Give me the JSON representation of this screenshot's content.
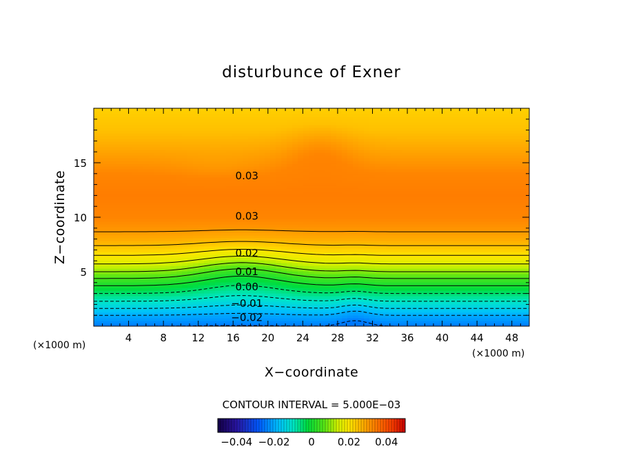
{
  "chart_data": {
    "type": "heatmap",
    "title": "disturbunce of Exner",
    "xlabel": "X−coordinate",
    "ylabel": "Z−coordinate",
    "x_unit": "(×1000 m)",
    "y_unit": "(×1000 m)",
    "xlim": [
      0,
      50
    ],
    "ylim": [
      0,
      20
    ],
    "x_ticks": [
      4,
      8,
      12,
      16,
      20,
      24,
      28,
      32,
      36,
      40,
      44,
      48
    ],
    "y_ticks": [
      5,
      10,
      15
    ],
    "contour_interval_text": "CONTOUR INTERVAL = 5.000E−03",
    "contour_interval": 0.005,
    "contour_labels": [
      {
        "text": "0.03",
        "x": 16,
        "z": 13.8
      },
      {
        "text": "0.03",
        "x": 16,
        "z": 10.1
      },
      {
        "text": "0.02",
        "x": 16,
        "z": 6.7
      },
      {
        "text": "0.01",
        "x": 16,
        "z": 5.0
      },
      {
        "text": "0.00",
        "x": 16,
        "z": 3.6
      },
      {
        "text": "−0.01",
        "x": 16,
        "z": 2.1
      },
      {
        "text": "−0.02",
        "x": 16,
        "z": 0.8
      }
    ],
    "colorbar": {
      "min": -0.05,
      "max": 0.05,
      "tick_values": [
        -0.04,
        -0.02,
        0,
        0.02,
        0.04
      ],
      "tick_labels": [
        "−0.04",
        "−0.02",
        "0",
        "0.02",
        "0.04"
      ]
    },
    "field_profile": {
      "z": [
        0,
        0.5,
        1,
        2,
        3,
        4,
        5,
        6,
        7,
        8,
        9,
        10,
        12,
        14,
        15,
        16,
        17,
        18,
        19,
        20
      ],
      "value": [
        -0.025,
        -0.022,
        -0.02,
        -0.012,
        -0.005,
        0.002,
        0.01,
        0.017,
        0.023,
        0.028,
        0.031,
        0.033,
        0.034,
        0.033,
        0.031,
        0.029,
        0.027,
        0.025,
        0.024,
        0.023
      ]
    }
  }
}
